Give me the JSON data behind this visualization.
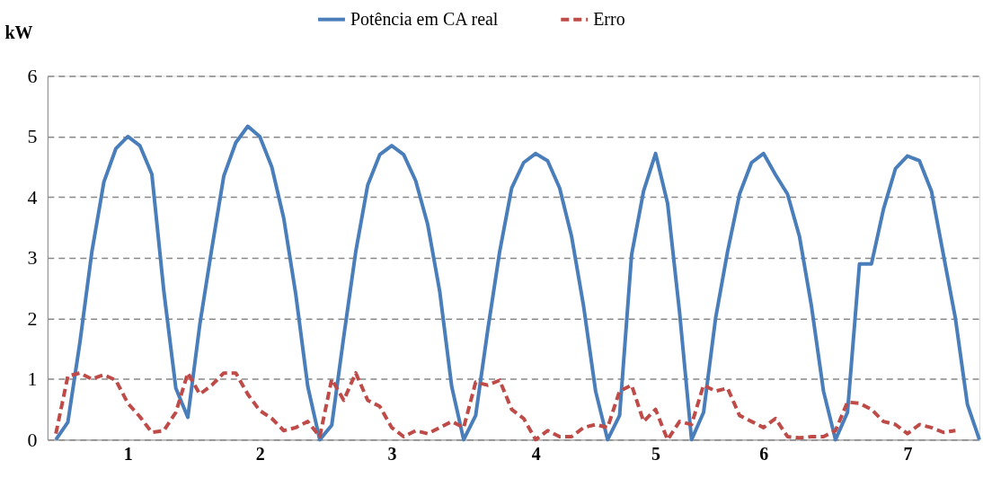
{
  "chart_data": {
    "type": "line",
    "ylabel": "kW",
    "categories": [
      null,
      null,
      null,
      null,
      null,
      null,
      "1",
      null,
      null,
      null,
      null,
      null,
      null,
      null,
      null,
      null,
      null,
      "2",
      null,
      null,
      null,
      null,
      null,
      null,
      null,
      null,
      null,
      null,
      "3",
      null,
      null,
      null,
      null,
      null,
      null,
      null,
      null,
      null,
      null,
      null,
      "4",
      null,
      null,
      null,
      null,
      null,
      null,
      null,
      null,
      null,
      "5",
      null,
      null,
      null,
      null,
      null,
      null,
      null,
      null,
      "6",
      null,
      null,
      null,
      null,
      null,
      null,
      null,
      null,
      null,
      null,
      null,
      "7",
      null,
      null,
      null,
      null,
      null,
      null
    ],
    "series": [
      {
        "name": "Potência em CA real",
        "color": "#4a7ebb",
        "line_style": "solid",
        "values": [
          0,
          0.29,
          1.6,
          3.1,
          4.25,
          4.8,
          5.0,
          4.85,
          4.38,
          2.45,
          0.85,
          0.37,
          1.9,
          3.15,
          4.35,
          4.9,
          5.17,
          5.0,
          4.5,
          3.65,
          2.4,
          0.88,
          0,
          0.24,
          1.7,
          3.1,
          4.2,
          4.7,
          4.85,
          4.7,
          4.27,
          3.55,
          2.45,
          0.88,
          0,
          0.4,
          1.8,
          3.1,
          4.15,
          4.57,
          4.72,
          4.6,
          4.15,
          3.35,
          2.2,
          0.8,
          0,
          0.4,
          3.05,
          4.1,
          4.72,
          3.9,
          2.1,
          0,
          0.45,
          2.0,
          3.1,
          4.05,
          4.57,
          4.72,
          4.37,
          4.05,
          3.35,
          2.2,
          0.8,
          0,
          0.45,
          2.9,
          2.9,
          3.8,
          4.47,
          4.68,
          4.6,
          4.1,
          3.05,
          2.0,
          0.58,
          0
        ]
      },
      {
        "name": "Erro",
        "color": "#be4b48",
        "line_style": "dashed",
        "values": [
          0.1,
          1.05,
          1.1,
          1.0,
          1.07,
          0.98,
          0.6,
          0.38,
          0.12,
          0.15,
          0.45,
          1.1,
          0.75,
          0.9,
          1.1,
          1.1,
          0.75,
          0.48,
          0.35,
          0.15,
          0.2,
          0.3,
          0.05,
          1.0,
          0.65,
          1.1,
          0.65,
          0.55,
          0.2,
          0.05,
          0.15,
          0.1,
          0.2,
          0.3,
          0.2,
          0.95,
          0.9,
          0.98,
          0.5,
          0.35,
          0,
          0.15,
          0.05,
          0.05,
          0.2,
          0.25,
          0.2,
          0.8,
          0.9,
          0.3,
          0.5,
          0,
          0.3,
          0.25,
          0.9,
          0.8,
          0.85,
          0.4,
          0.3,
          0.2,
          0.35,
          0.05,
          0.03,
          0.05,
          0.05,
          0.15,
          0.62,
          0.6,
          0.5,
          0.3,
          0.25,
          0.1,
          0.25,
          0.2,
          0.12,
          0.15,
          null,
          null
        ]
      }
    ],
    "ylim": [
      0,
      6
    ],
    "yticks": [
      0,
      1,
      2,
      3,
      4,
      5,
      6
    ],
    "grid": "y",
    "legend": "top",
    "marker": "none"
  }
}
